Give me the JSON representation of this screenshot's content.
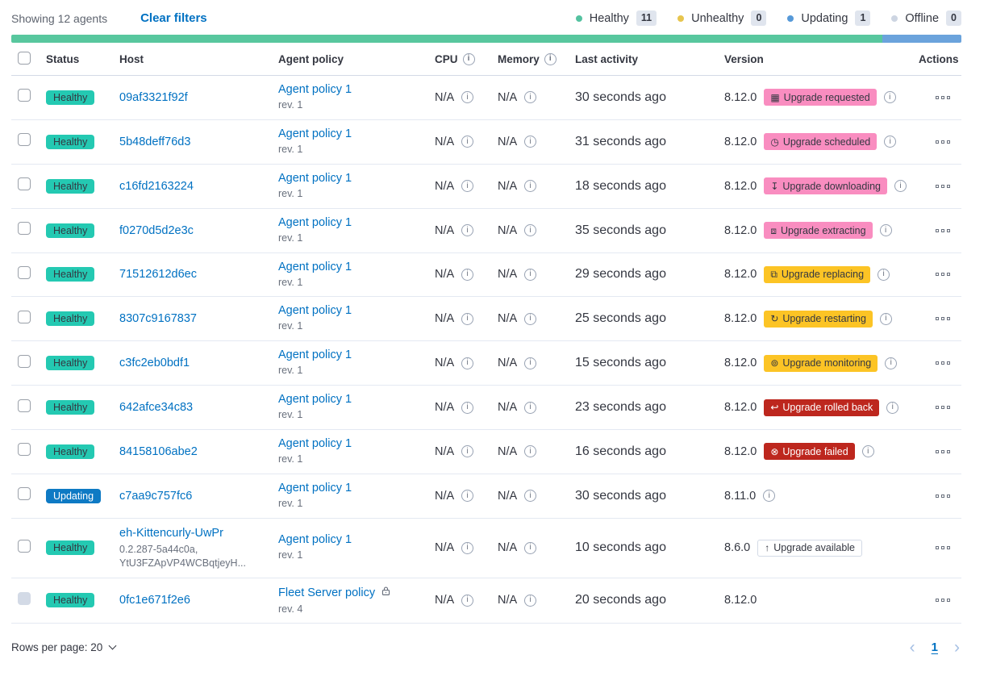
{
  "topbar": {
    "showing": "Showing 12 agents",
    "clear_filters": "Clear filters",
    "legend": [
      {
        "label": "Healthy",
        "count": "11",
        "dot_color": "#54c2a0"
      },
      {
        "label": "Unhealthy",
        "count": "0",
        "dot_color": "#e7c54e"
      },
      {
        "label": "Updating",
        "count": "1",
        "dot_color": "#5699d8"
      },
      {
        "label": "Offline",
        "count": "0",
        "dot_color": "#cdd5e2"
      }
    ]
  },
  "health_bar": {
    "segments": [
      {
        "status": "healthy",
        "fraction": 0.9167,
        "color": "#58c79e"
      },
      {
        "status": "updating",
        "fraction": 0.0833,
        "color": "#6ba3dc"
      }
    ]
  },
  "palette": {
    "link": "#0071c2",
    "healthy": "#24c9b2",
    "updating": "#0e7ac4",
    "pink": "#f98dc0",
    "warning": "#fcc425",
    "danger": "#bd271e"
  },
  "table": {
    "columns": [
      "Status",
      "Host",
      "Agent policy",
      "CPU",
      "Memory",
      "Last activity",
      "Version",
      "Actions"
    ],
    "rows": [
      {
        "status": "Healthy",
        "status_type": "healthy",
        "host": "09af3321f92f",
        "host_sub": [],
        "policy": "Agent policy 1",
        "policy_rev": "rev. 1",
        "policy_locked": false,
        "cpu": "N/A",
        "memory": "N/A",
        "last_activity": "30 seconds ago",
        "version": "8.12.0",
        "upgrade": {
          "label": "Upgrade requested",
          "style": "pink",
          "icon": "calendar-icon"
        },
        "version_info": true,
        "checkbox_disabled": false
      },
      {
        "status": "Healthy",
        "status_type": "healthy",
        "host": "5b48deff76d3",
        "host_sub": [],
        "policy": "Agent policy 1",
        "policy_rev": "rev. 1",
        "policy_locked": false,
        "cpu": "N/A",
        "memory": "N/A",
        "last_activity": "31 seconds ago",
        "version": "8.12.0",
        "upgrade": {
          "label": "Upgrade scheduled",
          "style": "pink",
          "icon": "clock-icon"
        },
        "version_info": true,
        "checkbox_disabled": false
      },
      {
        "status": "Healthy",
        "status_type": "healthy",
        "host": "c16fd2163224",
        "host_sub": [],
        "policy": "Agent policy 1",
        "policy_rev": "rev. 1",
        "policy_locked": false,
        "cpu": "N/A",
        "memory": "N/A",
        "last_activity": "18 seconds ago",
        "version": "8.12.0",
        "upgrade": {
          "label": "Upgrade downloading",
          "style": "pink",
          "icon": "download-icon"
        },
        "version_info": true,
        "checkbox_disabled": false
      },
      {
        "status": "Healthy",
        "status_type": "healthy",
        "host": "f0270d5d2e3c",
        "host_sub": [],
        "policy": "Agent policy 1",
        "policy_rev": "rev. 1",
        "policy_locked": false,
        "cpu": "N/A",
        "memory": "N/A",
        "last_activity": "35 seconds ago",
        "version": "8.12.0",
        "upgrade": {
          "label": "Upgrade extracting",
          "style": "pink",
          "icon": "package-icon"
        },
        "version_info": true,
        "checkbox_disabled": false
      },
      {
        "status": "Healthy",
        "status_type": "healthy",
        "host": "71512612d6ec",
        "host_sub": [],
        "policy": "Agent policy 1",
        "policy_rev": "rev. 1",
        "policy_locked": false,
        "cpu": "N/A",
        "memory": "N/A",
        "last_activity": "29 seconds ago",
        "version": "8.12.0",
        "upgrade": {
          "label": "Upgrade replacing",
          "style": "warning",
          "icon": "copy-icon"
        },
        "version_info": true,
        "checkbox_disabled": false
      },
      {
        "status": "Healthy",
        "status_type": "healthy",
        "host": "8307c9167837",
        "host_sub": [],
        "policy": "Agent policy 1",
        "policy_rev": "rev. 1",
        "policy_locked": false,
        "cpu": "N/A",
        "memory": "N/A",
        "last_activity": "25 seconds ago",
        "version": "8.12.0",
        "upgrade": {
          "label": "Upgrade restarting",
          "style": "warning",
          "icon": "refresh-icon"
        },
        "version_info": true,
        "checkbox_disabled": false
      },
      {
        "status": "Healthy",
        "status_type": "healthy",
        "host": "c3fc2eb0bdf1",
        "host_sub": [],
        "policy": "Agent policy 1",
        "policy_rev": "rev. 1",
        "policy_locked": false,
        "cpu": "N/A",
        "memory": "N/A",
        "last_activity": "15 seconds ago",
        "version": "8.12.0",
        "upgrade": {
          "label": "Upgrade monitoring",
          "style": "warning",
          "icon": "inspect-icon"
        },
        "version_info": true,
        "checkbox_disabled": false
      },
      {
        "status": "Healthy",
        "status_type": "healthy",
        "host": "642afce34c83",
        "host_sub": [],
        "policy": "Agent policy 1",
        "policy_rev": "rev. 1",
        "policy_locked": false,
        "cpu": "N/A",
        "memory": "N/A",
        "last_activity": "23 seconds ago",
        "version": "8.12.0",
        "upgrade": {
          "label": "Upgrade rolled back",
          "style": "danger",
          "icon": "return-icon"
        },
        "version_info": true,
        "checkbox_disabled": false
      },
      {
        "status": "Healthy",
        "status_type": "healthy",
        "host": "84158106abe2",
        "host_sub": [],
        "policy": "Agent policy 1",
        "policy_rev": "rev. 1",
        "policy_locked": false,
        "cpu": "N/A",
        "memory": "N/A",
        "last_activity": "16 seconds ago",
        "version": "8.12.0",
        "upgrade": {
          "label": "Upgrade failed",
          "style": "danger",
          "icon": "error-icon"
        },
        "version_info": true,
        "checkbox_disabled": false
      },
      {
        "status": "Updating",
        "status_type": "updating",
        "host": "c7aa9c757fc6",
        "host_sub": [],
        "policy": "Agent policy 1",
        "policy_rev": "rev. 1",
        "policy_locked": false,
        "cpu": "N/A",
        "memory": "N/A",
        "last_activity": "30 seconds ago",
        "version": "8.11.0",
        "upgrade": null,
        "version_info": true,
        "checkbox_disabled": false
      },
      {
        "status": "Healthy",
        "status_type": "healthy",
        "host": "eh-Kittencurly-UwPr",
        "host_sub": [
          "0.2.287-5a44c0a,",
          "YtU3FZApVP4WCBqtjeyH..."
        ],
        "policy": "Agent policy 1",
        "policy_rev": "rev. 1",
        "policy_locked": false,
        "cpu": "N/A",
        "memory": "N/A",
        "last_activity": "10 seconds ago",
        "version": "8.6.0",
        "upgrade": {
          "label": "Upgrade available",
          "style": "hollow",
          "icon": "arrow-up-icon"
        },
        "version_info": false,
        "checkbox_disabled": false
      },
      {
        "status": "Healthy",
        "status_type": "healthy",
        "host": "0fc1e671f2e6",
        "host_sub": [],
        "policy": "Fleet Server policy",
        "policy_rev": "rev. 4",
        "policy_locked": true,
        "cpu": "N/A",
        "memory": "N/A",
        "last_activity": "20 seconds ago",
        "version": "8.12.0",
        "upgrade": null,
        "version_info": false,
        "checkbox_disabled": true
      }
    ]
  },
  "footer": {
    "rows_per_page": "Rows per page: 20",
    "page": "1",
    "prev_arrow": "‹",
    "next_arrow": "›"
  }
}
